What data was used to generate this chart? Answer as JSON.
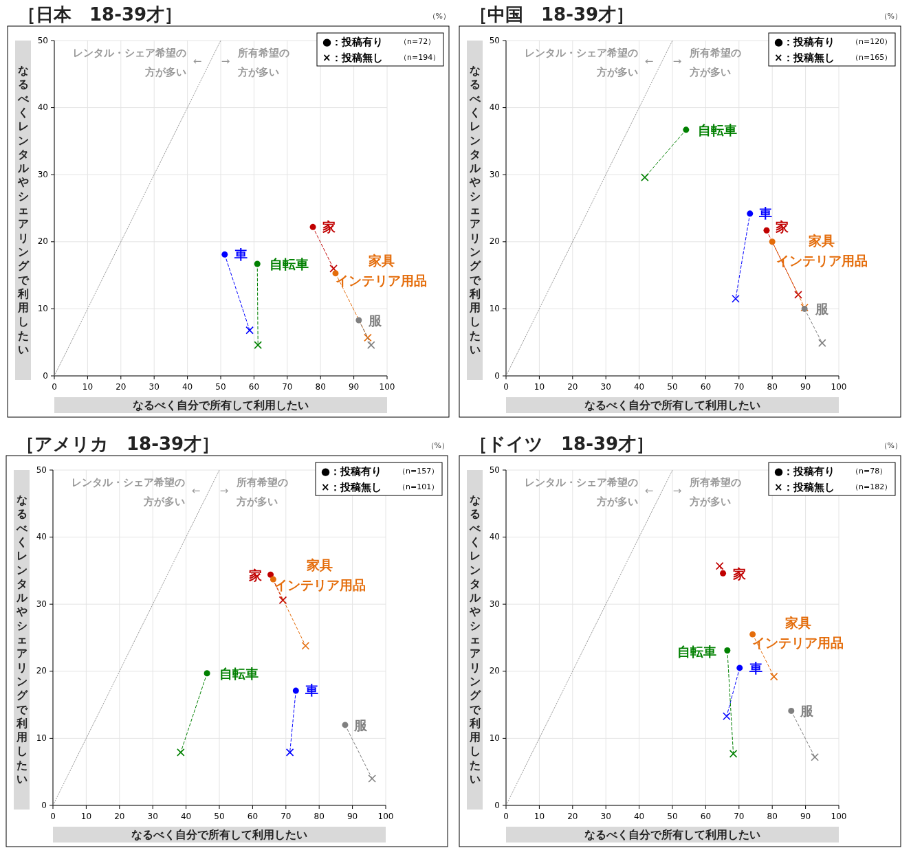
{
  "chart_data": [
    {
      "type": "scatter",
      "title": "［日本　18-39才］",
      "xlabel": "なるべく自分で所有して利用したい",
      "ylabel": "なるべくレンタルやシェアリングで利用したい",
      "xlim": [
        0,
        100
      ],
      "xticks": [
        0,
        10,
        20,
        30,
        40,
        50,
        60,
        70,
        80,
        90,
        100
      ],
      "ylim": [
        0,
        50
      ],
      "yticks": [
        0,
        10,
        20,
        30,
        40,
        50
      ],
      "grid": true,
      "annotations": [
        "レンタル・シェア希望の",
        "方が多い",
        "←",
        "→",
        "所有希望の",
        "方が多い",
        "（%）",
        "●：投稿有り",
        "（n=72）",
        "×：投稿無し",
        "（n=194）"
      ],
      "series": [
        {
          "name": "車",
          "type": "line",
          "color": "#0000ff",
          "x": [
            51.2,
            58.7
          ],
          "values": [
            18.1,
            6.8
          ],
          "line_style": "dashed",
          "marker": [
            "circle",
            "cross"
          ]
        },
        {
          "name": "自転車",
          "type": "line",
          "color": "#008000",
          "x": [
            61.0,
            61.2
          ],
          "values": [
            16.7,
            4.6
          ],
          "line_style": "dashed",
          "marker": [
            "circle",
            "cross"
          ]
        },
        {
          "name": "家",
          "type": "line",
          "color": "#c00000",
          "x": [
            77.7,
            83.9
          ],
          "values": [
            22.2,
            16.0
          ],
          "line_style": "dashed",
          "marker": [
            "circle",
            "cross"
          ]
        },
        {
          "name": "家具インテリア用品",
          "type": "line",
          "color": "#e46c0a",
          "x": [
            84.5,
            94.2
          ],
          "values": [
            15.3,
            5.7
          ],
          "line_style": "dashed",
          "marker": [
            "circle",
            "cross"
          ]
        },
        {
          "name": "服",
          "type": "line",
          "color": "#808080",
          "x": [
            91.5,
            95.2
          ],
          "values": [
            8.3,
            4.6
          ],
          "line_style": "dashed",
          "marker": [
            "circle",
            "cross"
          ]
        },
        {
          "type": "line",
          "color": "#808080",
          "x": [
            0,
            50
          ],
          "values": [
            0,
            50
          ],
          "line_style": "dotted",
          "marker": "none"
        }
      ]
    },
    {
      "type": "scatter",
      "title": "［中国　18-39才］",
      "xlabel": "なるべく自分で所有して利用したい",
      "ylabel": "なるべくレンタルやシェアリングで利用したい",
      "xlim": [
        0,
        100
      ],
      "xticks": [
        0,
        10,
        20,
        30,
        40,
        50,
        60,
        70,
        80,
        90,
        100
      ],
      "ylim": [
        0,
        50
      ],
      "yticks": [
        0,
        10,
        20,
        30,
        40,
        50
      ],
      "grid": true,
      "annotations": [
        "レンタル・シェア希望の",
        "方が多い",
        "←",
        "→",
        "所有希望の",
        "方が多い",
        "（%）",
        "●：投稿有り",
        "（n=120）",
        "×：投稿無し",
        "（n=165）"
      ],
      "series": [
        {
          "name": "車",
          "type": "line",
          "color": "#0000ff",
          "x": [
            73.3,
            69.0
          ],
          "values": [
            24.2,
            11.5
          ],
          "line_style": "dashed",
          "marker": [
            "circle",
            "cross"
          ]
        },
        {
          "name": "自転車",
          "type": "line",
          "color": "#008000",
          "x": [
            54.1,
            41.7
          ],
          "values": [
            36.7,
            29.6
          ],
          "line_style": "dashed",
          "marker": [
            "circle",
            "cross"
          ]
        },
        {
          "name": "家",
          "type": "line",
          "color": "#c00000",
          "x": [
            78.3,
            87.8
          ],
          "values": [
            21.7,
            12.1
          ],
          "line_style": "dashed",
          "marker": [
            "circle",
            "cross"
          ]
        },
        {
          "name": "家具インテリア用品",
          "type": "line",
          "color": "#e46c0a",
          "x": [
            80.0,
            89.7
          ],
          "values": [
            20.0,
            10.2
          ],
          "line_style": "dashed",
          "marker": [
            "circle",
            "cross"
          ]
        },
        {
          "name": "服",
          "type": "line",
          "color": "#808080",
          "x": [
            89.7,
            95.0
          ],
          "values": [
            10.0,
            4.9
          ],
          "line_style": "dashed",
          "marker": [
            "circle",
            "cross"
          ]
        },
        {
          "type": "line",
          "color": "#808080",
          "x": [
            0,
            50
          ],
          "values": [
            0,
            50
          ],
          "line_style": "dotted",
          "marker": "none"
        }
      ]
    },
    {
      "type": "scatter",
      "title": "［アメリカ　18-39才］",
      "xlabel": "なるべく自分で所有して利用したい",
      "ylabel": "なるべくレンタルやシェアリングで利用したい",
      "xlim": [
        0,
        100
      ],
      "xticks": [
        0,
        10,
        20,
        30,
        40,
        50,
        60,
        70,
        80,
        90,
        100
      ],
      "ylim": [
        0,
        50
      ],
      "yticks": [
        0,
        10,
        20,
        30,
        40,
        50
      ],
      "grid": true,
      "annotations": [
        "レンタル・シェア希望の",
        "方が多い",
        "←",
        "→",
        "所有希望の",
        "方が多い",
        "（%）",
        "●：投稿有り",
        "（n=157）",
        "×：投稿無し",
        "（n=101）"
      ],
      "series": [
        {
          "name": "車",
          "type": "line",
          "color": "#0000ff",
          "x": [
            73.0,
            71.2
          ],
          "values": [
            17.1,
            7.9
          ],
          "line_style": "dashed",
          "marker": [
            "circle",
            "cross"
          ]
        },
        {
          "name": "自転車",
          "type": "line",
          "color": "#008000",
          "x": [
            46.3,
            38.4
          ],
          "values": [
            19.7,
            7.9
          ],
          "line_style": "dashed",
          "marker": [
            "circle",
            "cross"
          ]
        },
        {
          "name": "家",
          "type": "line",
          "color": "#c00000",
          "x": [
            65.4,
            69.1
          ],
          "values": [
            34.4,
            30.6
          ],
          "line_style": "dashed",
          "marker": [
            "circle",
            "cross"
          ]
        },
        {
          "name": "家具インテリア用品",
          "type": "line",
          "color": "#e46c0a",
          "x": [
            66.2,
            75.9
          ],
          "values": [
            33.7,
            23.8
          ],
          "line_style": "dashed",
          "marker": [
            "circle",
            "cross"
          ]
        },
        {
          "name": "服",
          "type": "line",
          "color": "#808080",
          "x": [
            87.8,
            95.9
          ],
          "values": [
            12.0,
            4.0
          ],
          "line_style": "dashed",
          "marker": [
            "circle",
            "cross"
          ]
        },
        {
          "type": "line",
          "color": "#808080",
          "x": [
            0,
            50
          ],
          "values": [
            0,
            50
          ],
          "line_style": "dotted",
          "marker": "none"
        }
      ]
    },
    {
      "type": "scatter",
      "title": "［ドイツ　18-39才］",
      "xlabel": "なるべく自分で所有して利用したい",
      "ylabel": "なるべくレンタルやシェアリングで利用したい",
      "xlim": [
        0,
        100
      ],
      "xticks": [
        0,
        10,
        20,
        30,
        40,
        50,
        60,
        70,
        80,
        90,
        100
      ],
      "ylim": [
        0,
        50
      ],
      "yticks": [
        0,
        10,
        20,
        30,
        40,
        50
      ],
      "grid": true,
      "annotations": [
        "レンタル・シェア希望の",
        "方が多い",
        "←",
        "→",
        "所有希望の",
        "方が多い",
        "（%）",
        "●：投稿有り",
        "（n=78）",
        "×：投稿無し",
        "（n=182）"
      ],
      "series": [
        {
          "name": "車",
          "type": "line",
          "color": "#0000ff",
          "x": [
            70.2,
            66.3
          ],
          "values": [
            20.5,
            13.3
          ],
          "line_style": "dashed",
          "marker": [
            "circle",
            "cross"
          ]
        },
        {
          "name": "自転車",
          "type": "line",
          "color": "#008000",
          "x": [
            66.5,
            68.3
          ],
          "values": [
            23.1,
            7.7
          ],
          "line_style": "dashed",
          "marker": [
            "circle",
            "cross"
          ]
        },
        {
          "name": "家",
          "type": "line",
          "color": "#c00000",
          "x": [
            65.2,
            64.2
          ],
          "values": [
            34.6,
            35.7
          ],
          "line_style": "dashed",
          "marker": [
            "circle",
            "cross"
          ]
        },
        {
          "name": "家具インテリア用品",
          "type": "line",
          "color": "#e46c0a",
          "x": [
            74.1,
            80.5
          ],
          "values": [
            25.5,
            19.2
          ],
          "line_style": "dashed",
          "marker": [
            "circle",
            "cross"
          ]
        },
        {
          "name": "服",
          "type": "line",
          "color": "#808080",
          "x": [
            85.7,
            92.8
          ],
          "values": [
            14.1,
            7.2
          ],
          "line_style": "dashed",
          "marker": [
            "circle",
            "cross"
          ]
        },
        {
          "type": "line",
          "color": "#808080",
          "x": [
            0,
            50
          ],
          "values": [
            0,
            50
          ],
          "line_style": "dotted",
          "marker": "none"
        }
      ]
    }
  ]
}
